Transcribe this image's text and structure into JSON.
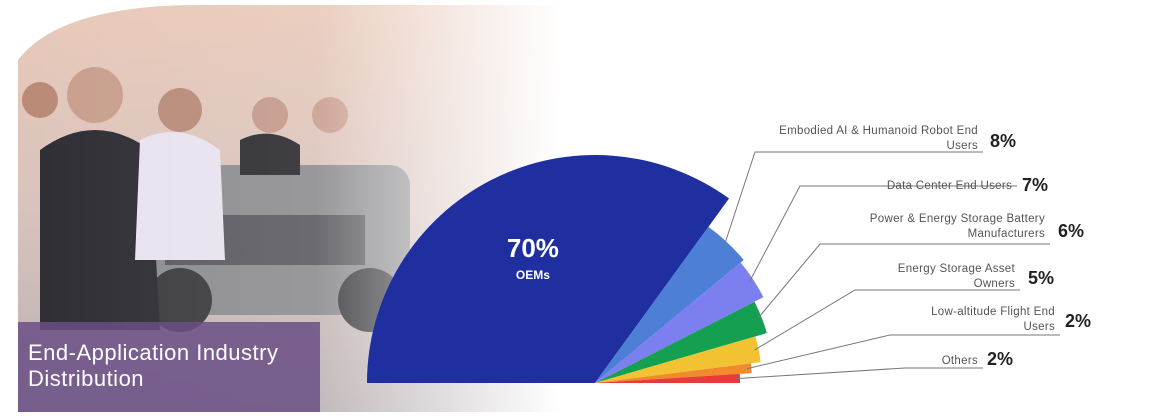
{
  "chart_data": {
    "type": "pie",
    "half": true,
    "title": "End-Application Industry Distribution",
    "categories": [
      "OEMs",
      "Embodied AI & Humanoid Robot End Users",
      "Data Center End Users",
      "Power & Energy Storage Battery Manufacturers",
      "Energy Storage Asset Owners",
      "Low-altitude Flight End Users",
      "Others"
    ],
    "values": [
      70,
      8,
      7,
      6,
      5,
      2,
      2
    ],
    "value_labels": [
      "70%",
      "8%",
      "7%",
      "6%",
      "5%",
      "2%",
      "2%"
    ],
    "colors": [
      "#1f2fa0",
      "#4d7fd6",
      "#7b7ff0",
      "#14a050",
      "#f2c233",
      "#f08a2a",
      "#e53b3b"
    ]
  }
}
